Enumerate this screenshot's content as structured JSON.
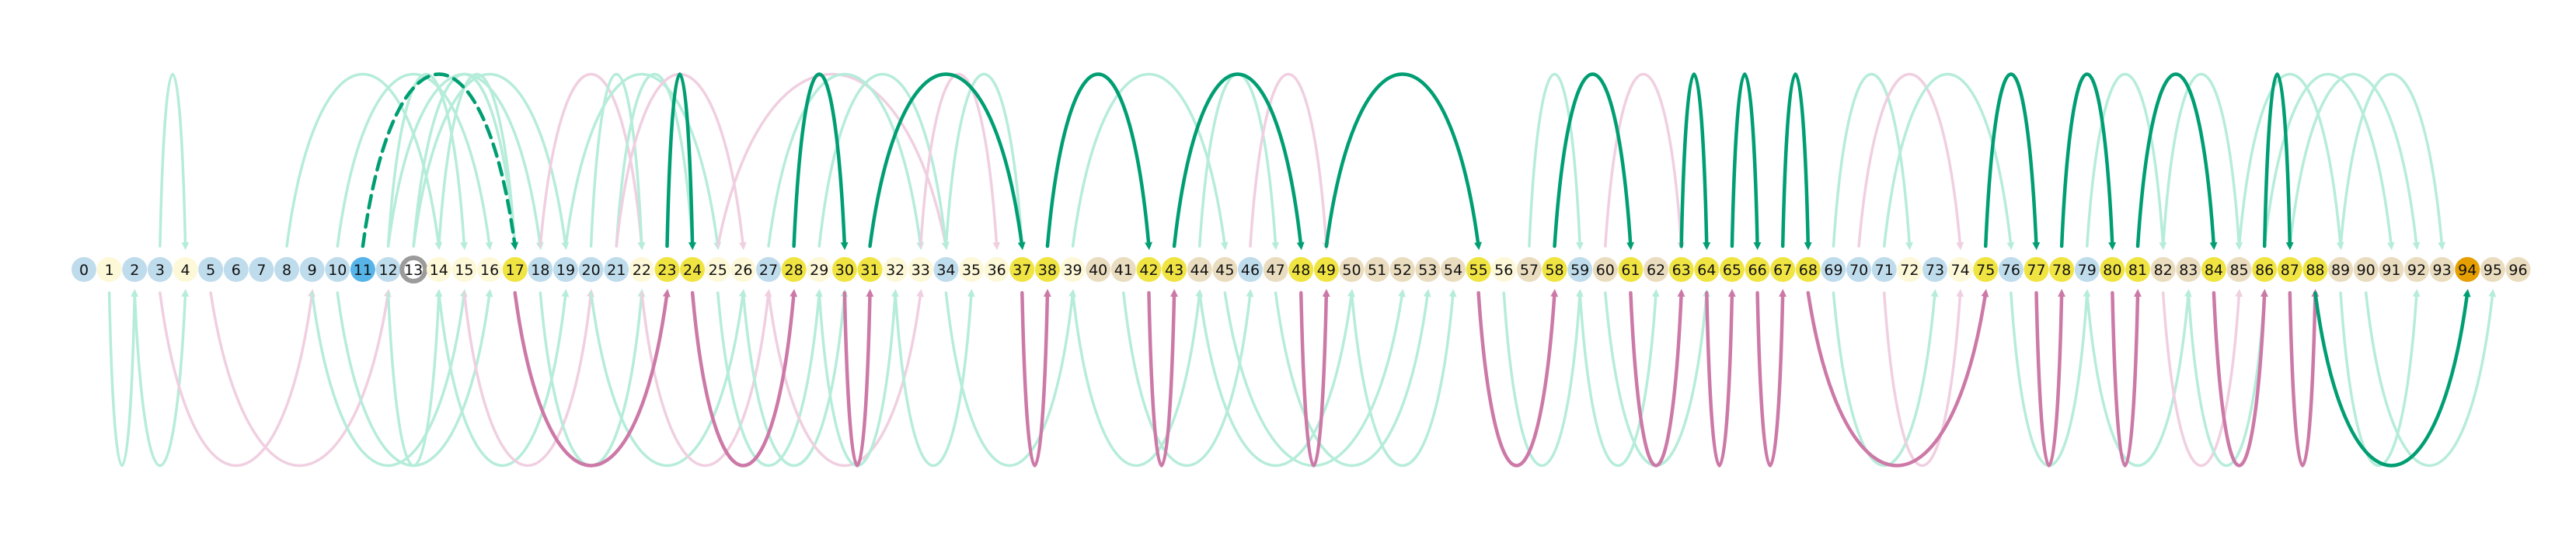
{
  "colors": {
    "node_blue": "#bfdcec",
    "node_cream": "#fdf8d8",
    "node_yellow": "#f0e442",
    "node_tan": "#eadcbf",
    "node_focus": "#56b4e9",
    "node_orange": "#e69f00",
    "ring_grey": "#9b9b9b",
    "arc_green": "#009e73",
    "arc_pink": "#cc79a7",
    "arc_green_light": "#b6ecda",
    "arc_pink_light": "#f0cfe0"
  },
  "node_categories": [
    "blue",
    "cream",
    "blue",
    "blue",
    "cream",
    "blue",
    "blue",
    "blue",
    "blue",
    "blue",
    "blue",
    "focus",
    "blue",
    "ring",
    "cream",
    "cream",
    "cream",
    "yellow",
    "blue",
    "blue",
    "blue",
    "blue",
    "cream",
    "yellow",
    "yellow",
    "cream",
    "cream",
    "blue",
    "yellow",
    "cream",
    "yellow",
    "yellow",
    "cream",
    "cream",
    "blue",
    "cream",
    "cream",
    "yellow",
    "yellow",
    "cream",
    "tan",
    "tan",
    "yellow",
    "yellow",
    "tan",
    "tan",
    "blue",
    "tan",
    "yellow",
    "yellow",
    "tan",
    "tan",
    "tan",
    "tan",
    "tan",
    "yellow",
    "cream",
    "tan",
    "yellow",
    "blue",
    "tan",
    "yellow",
    "tan",
    "yellow",
    "yellow",
    "yellow",
    "yellow",
    "yellow",
    "yellow",
    "blue",
    "blue",
    "blue",
    "cream",
    "blue",
    "cream",
    "yellow",
    "blue",
    "yellow",
    "yellow",
    "blue",
    "yellow",
    "yellow",
    "tan",
    "tan",
    "yellow",
    "tan",
    "yellow",
    "yellow",
    "yellow",
    "tan",
    "tan",
    "tan",
    "tan",
    "tan",
    "orange",
    "tan",
    "tan"
  ],
  "highlight_arcs_above": [
    {
      "from": 11,
      "to": 17,
      "dashed": true
    },
    {
      "from": 23,
      "to": 24
    },
    {
      "from": 28,
      "to": 30
    },
    {
      "from": 31,
      "to": 37
    },
    {
      "from": 38,
      "to": 42
    },
    {
      "from": 43,
      "to": 48
    },
    {
      "from": 49,
      "to": 55
    },
    {
      "from": 58,
      "to": 61
    },
    {
      "from": 63,
      "to": 64
    },
    {
      "from": 65,
      "to": 66
    },
    {
      "from": 67,
      "to": 68
    },
    {
      "from": 75,
      "to": 77
    },
    {
      "from": 78,
      "to": 80
    },
    {
      "from": 81,
      "to": 84
    },
    {
      "from": 86,
      "to": 87
    }
  ],
  "highlight_arcs_below": [
    {
      "from": 17,
      "to": 23
    },
    {
      "from": 24,
      "to": 28
    },
    {
      "from": 30,
      "to": 31
    },
    {
      "from": 37,
      "to": 38
    },
    {
      "from": 42,
      "to": 43
    },
    {
      "from": 48,
      "to": 49
    },
    {
      "from": 55,
      "to": 58
    },
    {
      "from": 61,
      "to": 63
    },
    {
      "from": 64,
      "to": 65
    },
    {
      "from": 66,
      "to": 67
    },
    {
      "from": 68,
      "to": 75
    },
    {
      "from": 77,
      "to": 78
    },
    {
      "from": 80,
      "to": 81
    },
    {
      "from": 84,
      "to": 86
    },
    {
      "from": 87,
      "to": 88
    },
    {
      "from": 88,
      "to": 94,
      "green": true
    }
  ],
  "faint_arcs_above": [
    {
      "from": 3,
      "to": 4
    },
    {
      "from": 8,
      "to": 14
    },
    {
      "from": 10,
      "to": 16
    },
    {
      "from": 12,
      "to": 15
    },
    {
      "from": 12,
      "to": 18
    },
    {
      "from": 13,
      "to": 17
    },
    {
      "from": 13,
      "to": 19
    },
    {
      "from": 14,
      "to": 17
    },
    {
      "from": 18,
      "to": 22,
      "pink": true
    },
    {
      "from": 19,
      "to": 25
    },
    {
      "from": 20,
      "to": 22
    },
    {
      "from": 21,
      "to": 24
    },
    {
      "from": 21,
      "to": 26,
      "pink": true
    },
    {
      "from": 25,
      "to": 34,
      "pink": true
    },
    {
      "from": 27,
      "to": 33
    },
    {
      "from": 29,
      "to": 34
    },
    {
      "from": 33,
      "to": 36,
      "pink": true
    },
    {
      "from": 34,
      "to": 37
    },
    {
      "from": 39,
      "to": 45
    },
    {
      "from": 44,
      "to": 47
    },
    {
      "from": 46,
      "to": 49,
      "pink": true
    },
    {
      "from": 57,
      "to": 59
    },
    {
      "from": 60,
      "to": 63,
      "pink": true
    },
    {
      "from": 69,
      "to": 72
    },
    {
      "from": 70,
      "to": 74,
      "pink": true
    },
    {
      "from": 71,
      "to": 76
    },
    {
      "from": 79,
      "to": 82
    },
    {
      "from": 82,
      "to": 85
    },
    {
      "from": 85,
      "to": 89
    },
    {
      "from": 86,
      "to": 91
    },
    {
      "from": 87,
      "to": 92
    },
    {
      "from": 89,
      "to": 93
    }
  ],
  "faint_arcs_below": [
    {
      "from": 1,
      "to": 2
    },
    {
      "from": 2,
      "to": 4
    },
    {
      "from": 3,
      "to": 9,
      "pink": true
    },
    {
      "from": 5,
      "to": 12,
      "pink": true
    },
    {
      "from": 9,
      "to": 15
    },
    {
      "from": 10,
      "to": 16
    },
    {
      "from": 12,
      "to": 14
    },
    {
      "from": 14,
      "to": 19
    },
    {
      "from": 15,
      "to": 20,
      "pink": true
    },
    {
      "from": 18,
      "to": 22
    },
    {
      "from": 20,
      "to": 26
    },
    {
      "from": 22,
      "to": 27,
      "pink": true
    },
    {
      "from": 25,
      "to": 29
    },
    {
      "from": 26,
      "to": 30
    },
    {
      "from": 27,
      "to": 33,
      "pink": true
    },
    {
      "from": 29,
      "to": 32
    },
    {
      "from": 32,
      "to": 35
    },
    {
      "from": 34,
      "to": 39
    },
    {
      "from": 39,
      "to": 44
    },
    {
      "from": 41,
      "to": 46
    },
    {
      "from": 44,
      "to": 50
    },
    {
      "from": 45,
      "to": 52
    },
    {
      "from": 47,
      "to": 53
    },
    {
      "from": 50,
      "to": 54
    },
    {
      "from": 56,
      "to": 59
    },
    {
      "from": 59,
      "to": 62
    },
    {
      "from": 60,
      "to": 64
    },
    {
      "from": 69,
      "to": 73
    },
    {
      "from": 71,
      "to": 74,
      "pink": true
    },
    {
      "from": 76,
      "to": 79
    },
    {
      "from": 79,
      "to": 83
    },
    {
      "from": 82,
      "to": 85,
      "pink": true
    },
    {
      "from": 83,
      "to": 86
    },
    {
      "from": 89,
      "to": 92
    },
    {
      "from": 90,
      "to": 95
    }
  ]
}
